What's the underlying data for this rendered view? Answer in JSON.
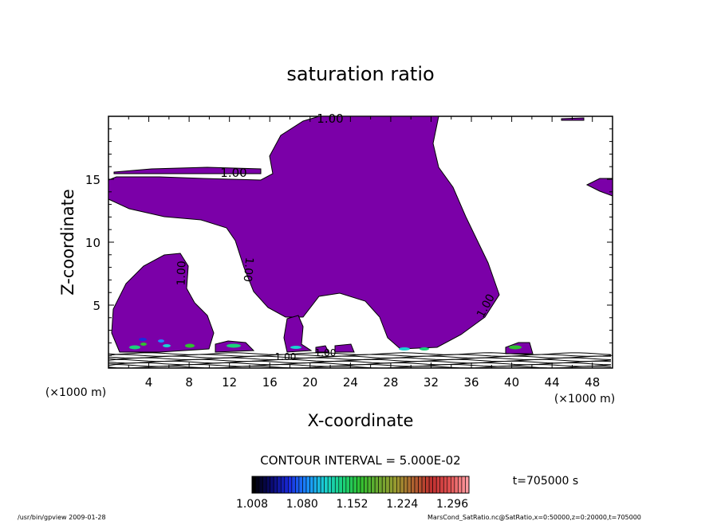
{
  "chart_data": {
    "type": "heatmap",
    "title": "saturation ratio",
    "xlabel": "X-coordinate",
    "ylabel": "Z-coordinate",
    "x_unit_left": "(×1000 m)",
    "x_unit_right": "(×1000 m)",
    "xlim": [
      0,
      50
    ],
    "ylim": [
      0,
      20
    ],
    "x_ticks": [
      4,
      8,
      12,
      16,
      20,
      24,
      28,
      32,
      36,
      40,
      44,
      48
    ],
    "y_ticks": [
      5,
      10,
      15
    ],
    "contour_interval_label": "CONTOUR INTERVAL = 5.000E-02",
    "time_label": "t=705000 s",
    "colorbar": {
      "min": 1.008,
      "max": 1.32,
      "tick_labels": [
        "1.008",
        "1.080",
        "1.152",
        "1.224",
        "1.296"
      ],
      "colors": [
        "#000000",
        "#0a0a70",
        "#1a2be0",
        "#1a8cff",
        "#1ad1d1",
        "#1ad17a",
        "#30c030",
        "#6aa830",
        "#9a9a30",
        "#b06030",
        "#c03030",
        "#e05050",
        "#ff9aa0"
      ]
    },
    "contour_labels": [
      "1.00",
      "1.00",
      "1.00",
      "1.00",
      "1.00",
      "1.00",
      "1.00"
    ],
    "fill_color": "#7b00a8",
    "footer_left": "/usr/bin/gpview   2009-01-28",
    "footer_right": "MarsCond_SatRatio.nc@SatRatio,x=0:50000,z=0:20000,t=705000"
  }
}
